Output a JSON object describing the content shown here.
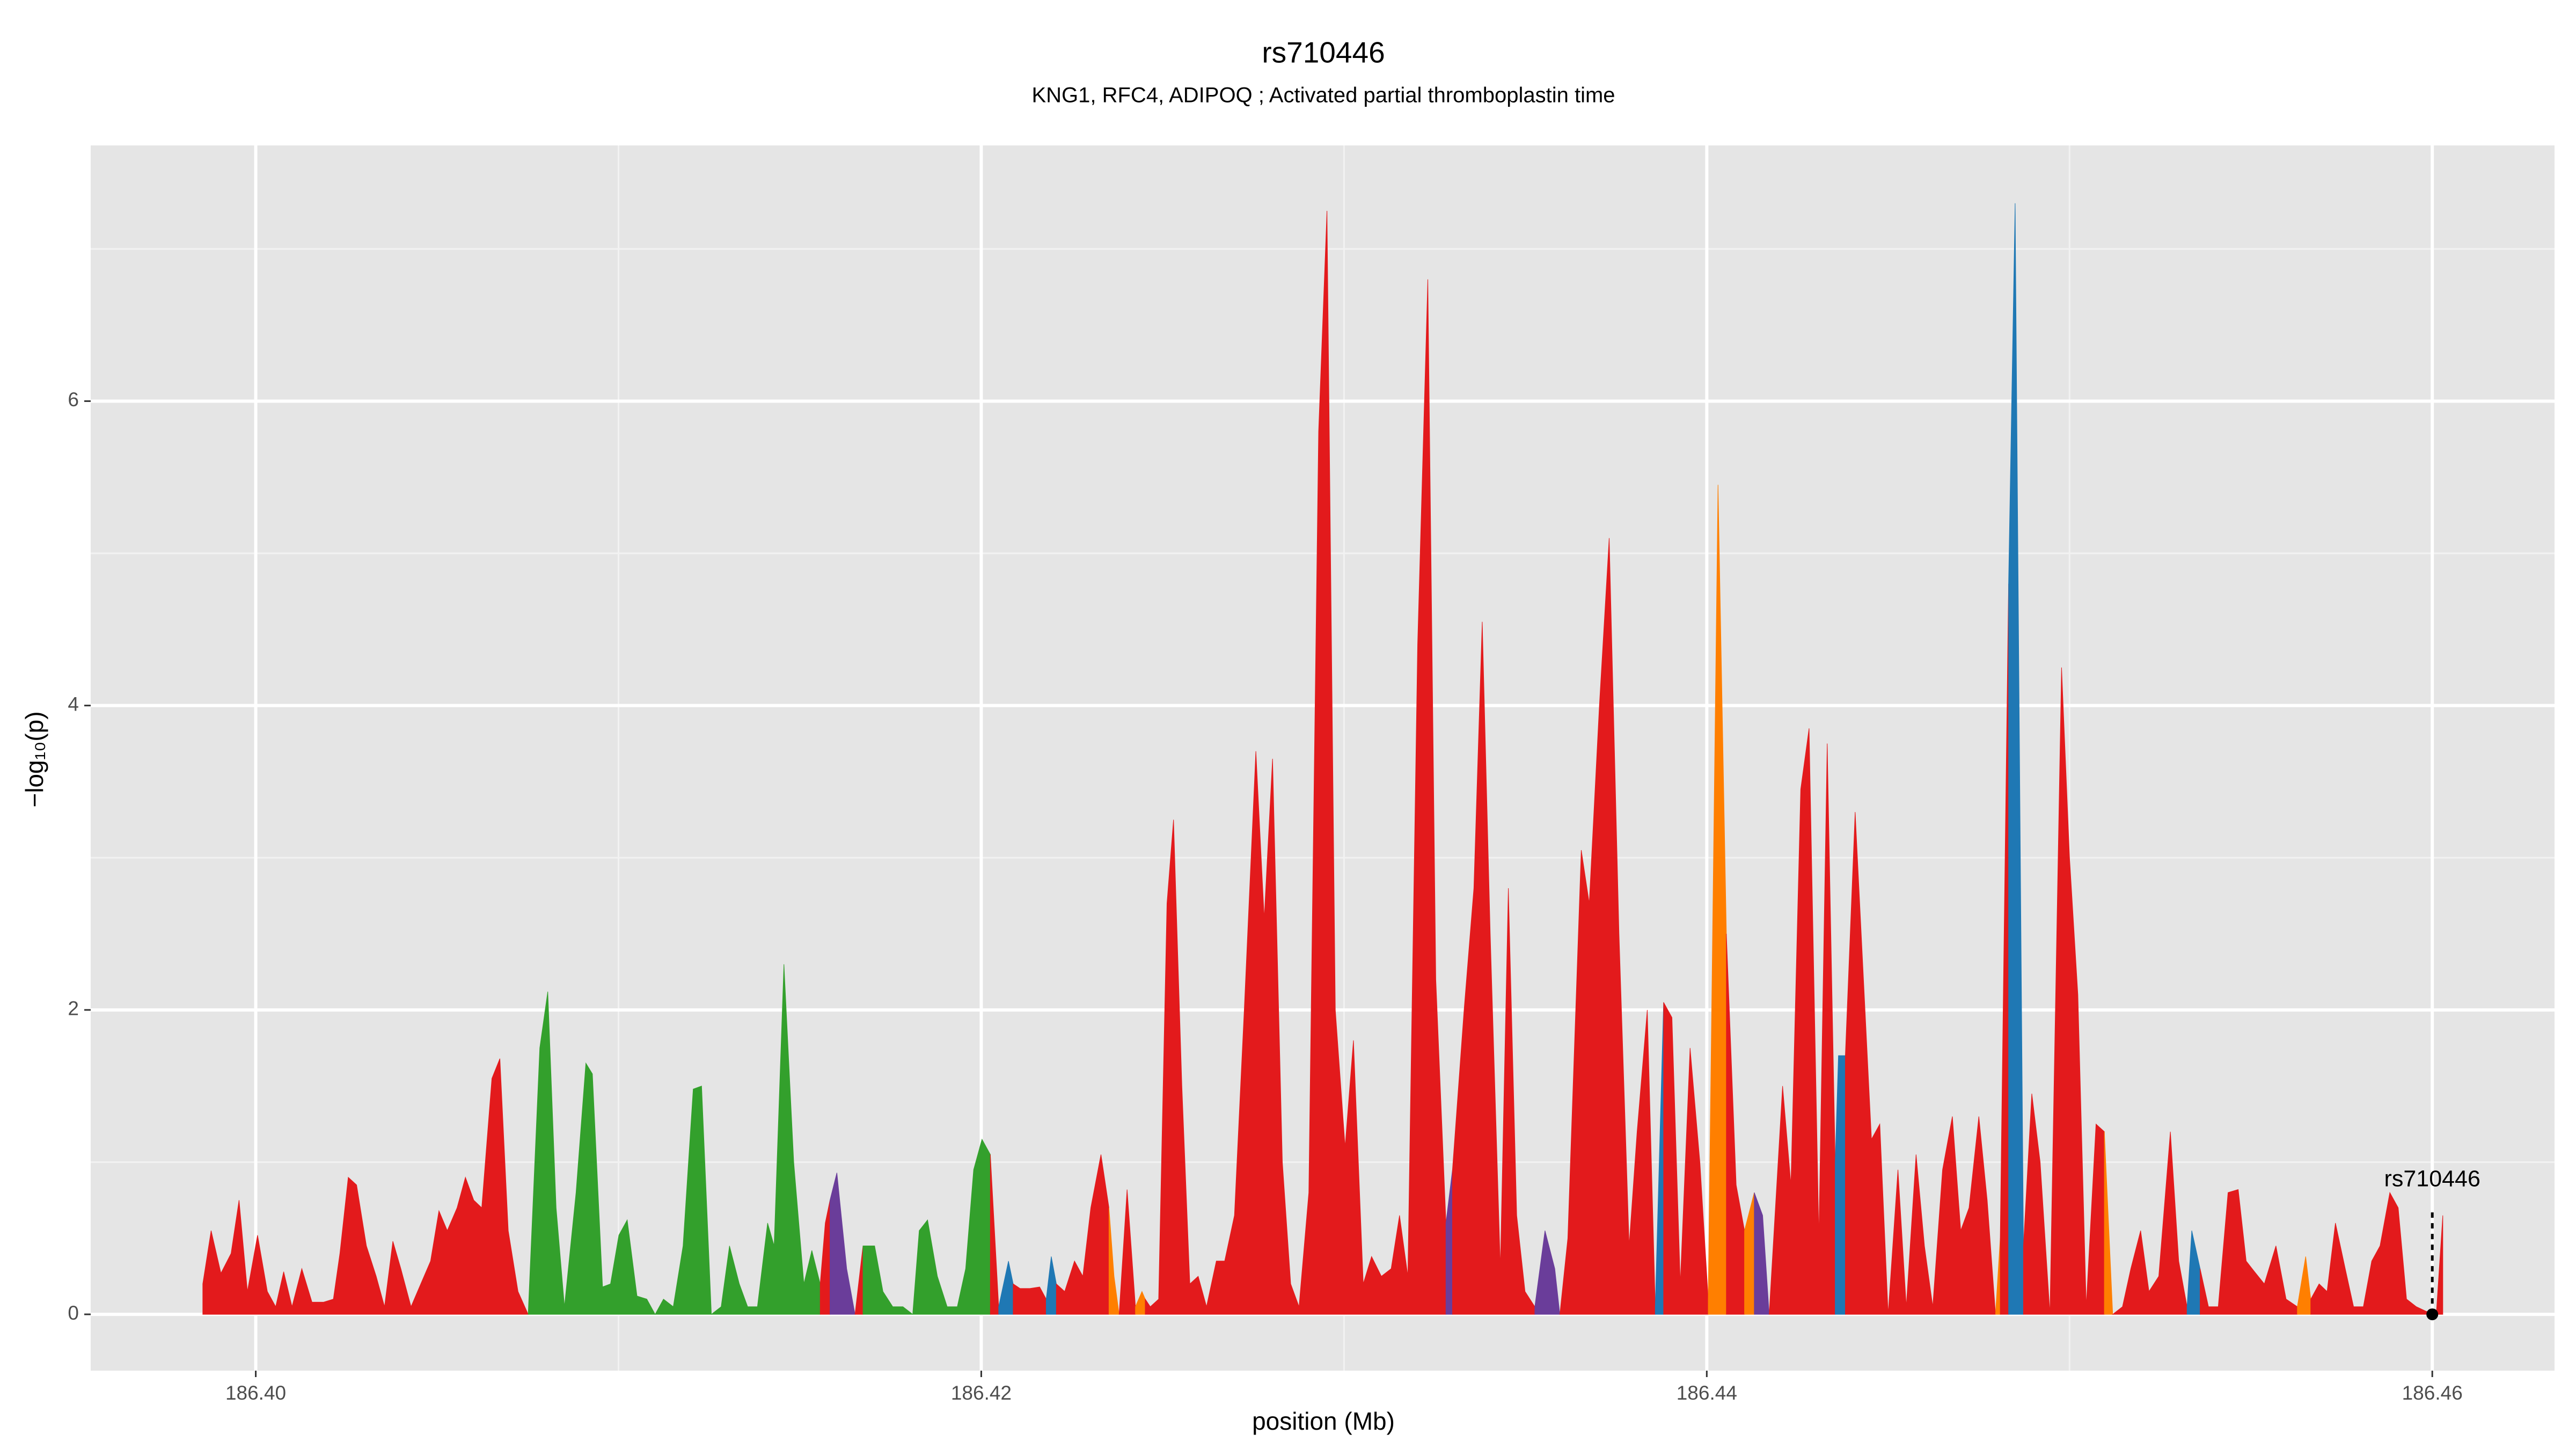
{
  "chart_data": {
    "type": "area",
    "title": "rs710446",
    "subtitle": "KNG1, RFC4, ADIPOQ ; Activated partial thromboplastin time",
    "x_label": "position (Mb)",
    "y_label": "−log₁₀(p)",
    "xlim": [
      186.39545,
      186.46337
    ],
    "ylim": [
      -0.37,
      7.68
    ],
    "xticks": [
      {
        "value": 186.4,
        "label": "186.40"
      },
      {
        "value": 186.42,
        "label": "186.42"
      },
      {
        "value": 186.44,
        "label": "186.44"
      },
      {
        "value": 186.46,
        "label": "186.46"
      }
    ],
    "yticks": [
      0,
      2,
      4,
      6
    ],
    "grid": true,
    "annotation": {
      "text": "rs710446",
      "x": 186.46,
      "y": 0
    },
    "series": [
      {
        "color": "#e31a1c",
        "x": [
          186.39854,
          186.39877,
          186.39904,
          186.39932,
          186.39954,
          186.39977,
          186.40005,
          186.40032,
          186.40055,
          186.40077,
          186.401,
          186.40127,
          186.40155,
          186.40187,
          186.40214,
          186.40232,
          186.40255,
          186.40278,
          186.40305,
          186.40332,
          186.40355,
          186.40378,
          186.404,
          186.40428,
          186.40455,
          186.40482,
          186.40505,
          186.40528,
          186.40555,
          186.40578,
          186.40601,
          186.40623,
          186.40651,
          186.40673,
          186.40696,
          186.40723,
          186.40751
        ],
        "values": [
          0.2,
          0.55,
          0.27,
          0.4,
          0.75,
          0.15,
          0.52,
          0.15,
          0.05,
          0.28,
          0.05,
          0.3,
          0.08,
          0.08,
          0.1,
          0.4,
          0.9,
          0.85,
          0.45,
          0.25,
          0.05,
          0.48,
          0.3,
          0.05,
          0.2,
          0.35,
          0.68,
          0.55,
          0.7,
          0.9,
          0.75,
          0.7,
          1.55,
          1.68,
          0.55,
          0.15,
          0
        ]
      },
      {
        "color": "#33a02c",
        "x": [
          186.40751,
          186.40783,
          186.40805,
          186.40828,
          186.40851,
          186.40883,
          186.4091,
          186.40928,
          186.40956,
          186.40978,
          186.41001,
          186.41024,
          186.41051,
          186.41078,
          186.41101,
          186.41124,
          186.41151,
          186.41178,
          186.41206,
          186.41229,
          186.41256,
          186.41283,
          186.41306,
          186.41333,
          186.41356,
          186.41383,
          186.41411,
          186.41429,
          186.41456,
          186.41483,
          186.41511,
          186.41533,
          186.41556
        ],
        "values": [
          0,
          1.75,
          2.12,
          0.7,
          0.05,
          0.8,
          1.65,
          1.58,
          0.18,
          0.2,
          0.52,
          0.62,
          0.12,
          0.1,
          0,
          0.1,
          0.05,
          0.45,
          1.48,
          1.5,
          0,
          0.05,
          0.45,
          0.2,
          0.05,
          0.05,
          0.6,
          0.45,
          2.3,
          1.0,
          0.2,
          0.42,
          0.2
        ]
      },
      {
        "color": "#e31a1c",
        "x": [
          186.41556,
          186.4157,
          186.41583
        ],
        "values": [
          0.2,
          0.6,
          0.75
        ]
      },
      {
        "color": "#6a3d9a",
        "x": [
          186.41583,
          186.41602,
          186.41629,
          186.41652
        ],
        "values": [
          0.75,
          0.93,
          0.3,
          0
        ]
      },
      {
        "color": "#e31a1c",
        "x": [
          186.41652,
          186.41674
        ],
        "values": [
          0,
          0.45
        ]
      },
      {
        "color": "#33a02c",
        "x": [
          186.41674,
          186.41706,
          186.41729,
          186.41756,
          186.41784,
          186.41811,
          186.41829,
          186.41852,
          186.41879,
          186.41906,
          186.41934,
          186.41957,
          186.41979,
          186.42002,
          186.42025
        ],
        "values": [
          0.45,
          0.45,
          0.15,
          0.05,
          0.05,
          0,
          0.55,
          0.62,
          0.25,
          0.05,
          0.05,
          0.3,
          0.95,
          1.15,
          1.05
        ]
      },
      {
        "color": "#e31a1c",
        "x": [
          186.42025,
          186.42048
        ],
        "values": [
          1.05,
          0.05
        ]
      },
      {
        "color": "#1f78b4",
        "x": [
          186.42048,
          186.42075,
          186.42088
        ],
        "values": [
          0.05,
          0.35,
          0.2
        ]
      },
      {
        "color": "#e31a1c",
        "x": [
          186.42088,
          186.42107,
          186.42134,
          186.42161,
          186.42179
        ],
        "values": [
          0.2,
          0.17,
          0.17,
          0.18,
          0.1
        ]
      },
      {
        "color": "#1f78b4",
        "x": [
          186.42179,
          186.42193,
          186.42207
        ],
        "values": [
          0.1,
          0.38,
          0.2
        ]
      },
      {
        "color": "#e31a1c",
        "x": [
          186.42207,
          186.4223,
          186.42257,
          186.4228,
          186.42302,
          186.4233,
          186.42352
        ],
        "values": [
          0.2,
          0.15,
          0.35,
          0.25,
          0.7,
          1.05,
          0.7
        ]
      },
      {
        "color": "#ff7f00",
        "x": [
          186.42352,
          186.42366,
          186.4238
        ],
        "values": [
          0.7,
          0.25,
          0
        ]
      },
      {
        "color": "#e31a1c",
        "x": [
          186.4238,
          186.42402,
          186.42425
        ],
        "values": [
          0,
          0.82,
          0.05
        ]
      },
      {
        "color": "#ff7f00",
        "x": [
          186.42425,
          186.42443,
          186.42452
        ],
        "values": [
          0.05,
          0.15,
          0.1
        ]
      },
      {
        "color": "#e31a1c",
        "x": [
          186.42452,
          186.42466,
          186.42489,
          186.42512,
          186.4253,
          186.42553,
          186.42575,
          186.42598,
          186.42621,
          186.42648,
          186.42671,
          186.42698,
          186.42725,
          186.42757,
          186.4278,
          186.42803,
          186.4283,
          186.42853,
          186.42876,
          186.42903,
          186.4293,
          186.42953,
          186.42976,
          186.43003,
          186.43026,
          186.43053,
          186.43076,
          186.43103,
          186.4313,
          186.43153,
          186.43176,
          186.43203,
          186.43231,
          186.43253,
          186.43281
        ],
        "values": [
          0.1,
          0.05,
          0.1,
          2.7,
          3.25,
          1.5,
          0.2,
          0.25,
          0.05,
          0.35,
          0.35,
          0.65,
          2.0,
          3.7,
          2.6,
          3.65,
          1.0,
          0.2,
          0.05,
          0.8,
          5.8,
          7.25,
          2.0,
          1.1,
          1.8,
          0.2,
          0.38,
          0.25,
          0.3,
          0.65,
          0.25,
          4.4,
          6.8,
          2.2,
          0.6
        ]
      },
      {
        "color": "#6a3d9a",
        "x": [
          186.43281,
          186.43299
        ],
        "values": [
          0.6,
          0.95
        ]
      },
      {
        "color": "#e31a1c",
        "x": [
          186.43299,
          186.43331,
          186.43358,
          186.43381,
          186.43403,
          186.43431,
          186.43453,
          186.43476,
          186.43499,
          186.43526
        ],
        "values": [
          0.95,
          2.0,
          2.8,
          4.55,
          2.5,
          0.3,
          2.8,
          0.65,
          0.15,
          0.05
        ]
      },
      {
        "color": "#6a3d9a",
        "x": [
          186.43526,
          186.43554,
          186.43581,
          186.43595
        ],
        "values": [
          0.05,
          0.55,
          0.3,
          0
        ]
      },
      {
        "color": "#e31a1c",
        "x": [
          186.43595,
          186.43617,
          186.43654,
          186.43676,
          186.43704,
          186.43731,
          186.43758,
          186.43786,
          186.43808,
          186.43836,
          186.43858
        ],
        "values": [
          0,
          0.5,
          3.05,
          2.7,
          4.0,
          5.1,
          2.5,
          0.45,
          1.2,
          2.0,
          0.05
        ]
      },
      {
        "color": "#1f78b4",
        "x": [
          186.43858,
          186.43881
        ],
        "values": [
          0.05,
          2.05
        ]
      },
      {
        "color": "#e31a1c",
        "x": [
          186.43881,
          186.43904,
          186.43927,
          186.43954,
          186.43981,
          186.44004
        ],
        "values": [
          2.05,
          1.95,
          0.2,
          1.75,
          1.0,
          0.1
        ]
      },
      {
        "color": "#ff7f00",
        "x": [
          186.44004,
          186.44031,
          186.44054
        ],
        "values": [
          0.1,
          5.45,
          2.5
        ]
      },
      {
        "color": "#e31a1c",
        "x": [
          186.44054,
          186.44081,
          186.44104
        ],
        "values": [
          2.5,
          0.85,
          0.55
        ]
      },
      {
        "color": "#ff7f00",
        "x": [
          186.44104,
          186.44131
        ],
        "values": [
          0.55,
          0.8
        ]
      },
      {
        "color": "#6a3d9a",
        "x": [
          186.44131,
          186.44154,
          186.44172
        ],
        "values": [
          0.8,
          0.65,
          0
        ]
      },
      {
        "color": "#e31a1c",
        "x": [
          186.44172,
          186.44209,
          186.44232,
          186.44259,
          186.44282,
          186.44309,
          186.44332,
          186.44354
        ],
        "values": [
          0,
          1.5,
          0.85,
          3.45,
          3.85,
          0.5,
          3.75,
          1.0
        ]
      },
      {
        "color": "#1f78b4",
        "x": [
          186.44354,
          186.44363,
          186.44382
        ],
        "values": [
          1.0,
          1.7,
          1.7
        ]
      },
      {
        "color": "#e31a1c",
        "x": [
          186.44382,
          186.44409,
          186.44432,
          186.44454,
          186.44477,
          186.445,
          186.44527,
          186.4455,
          186.44577,
          186.446,
          186.44623,
          186.4465,
          186.44677,
          186.447,
          186.44723,
          186.4475,
          186.44773,
          186.44796
        ],
        "values": [
          1.7,
          3.3,
          2.2,
          1.15,
          1.25,
          0,
          0.95,
          0.05,
          1.05,
          0.45,
          0.05,
          0.95,
          1.3,
          0.55,
          0.7,
          1.3,
          0.75,
          0
        ]
      },
      {
        "color": "#ff7f00",
        "x": [
          186.44796,
          186.44809
        ],
        "values": [
          0,
          0.5
        ]
      },
      {
        "color": "#e31a1c",
        "x": [
          186.44809,
          186.44832
        ],
        "values": [
          0.5,
          4.8
        ]
      },
      {
        "color": "#1f78b4",
        "x": [
          186.44832,
          186.4485,
          186.44873
        ],
        "values": [
          4.8,
          7.3,
          0.45
        ]
      },
      {
        "color": "#e31a1c",
        "x": [
          186.44873,
          186.44896,
          186.44919,
          186.44946,
          186.44978,
          186.45,
          186.45023,
          186.45046,
          186.45073,
          186.45096
        ],
        "values": [
          0.45,
          1.45,
          1.0,
          0,
          4.25,
          3.0,
          2.1,
          0.05,
          1.25,
          1.2
        ]
      },
      {
        "color": "#ff7f00",
        "x": [
          186.45096,
          186.45119
        ],
        "values": [
          1.2,
          0
        ]
      },
      {
        "color": "#e31a1c",
        "x": [
          186.45119,
          186.45146,
          186.45169,
          186.45196,
          186.45219,
          186.45246,
          186.45278,
          186.45301,
          186.45324
        ],
        "values": [
          0,
          0.05,
          0.3,
          0.55,
          0.15,
          0.25,
          1.2,
          0.35,
          0.05
        ]
      },
      {
        "color": "#1f78b4",
        "x": [
          186.45324,
          186.45337,
          186.4536
        ],
        "values": [
          0.05,
          0.55,
          0.3
        ]
      },
      {
        "color": "#e31a1c",
        "x": [
          186.4536,
          186.45383,
          186.4541,
          186.45437,
          186.45465,
          186.45487,
          186.4551,
          186.45537,
          186.45569,
          186.45597,
          186.45628
        ],
        "values": [
          0.3,
          0.05,
          0.05,
          0.8,
          0.82,
          0.35,
          0.28,
          0.2,
          0.45,
          0.1,
          0.05
        ]
      },
      {
        "color": "#ff7f00",
        "x": [
          186.45628,
          186.45651,
          186.45665
        ],
        "values": [
          0.05,
          0.38,
          0.1
        ]
      },
      {
        "color": "#e31a1c",
        "x": [
          186.45665,
          186.45688,
          186.4571,
          186.45733,
          186.4576,
          186.45783,
          186.4581,
          186.45833,
          186.45856,
          186.45883,
          186.45906,
          186.45929,
          186.45956,
          186.45983,
          186.46011,
          186.46029
        ],
        "values": [
          0.1,
          0.2,
          0.15,
          0.6,
          0.3,
          0.05,
          0.05,
          0.35,
          0.45,
          0.8,
          0.7,
          0.1,
          0.05,
          0.02,
          0,
          0.65
        ]
      }
    ]
  }
}
